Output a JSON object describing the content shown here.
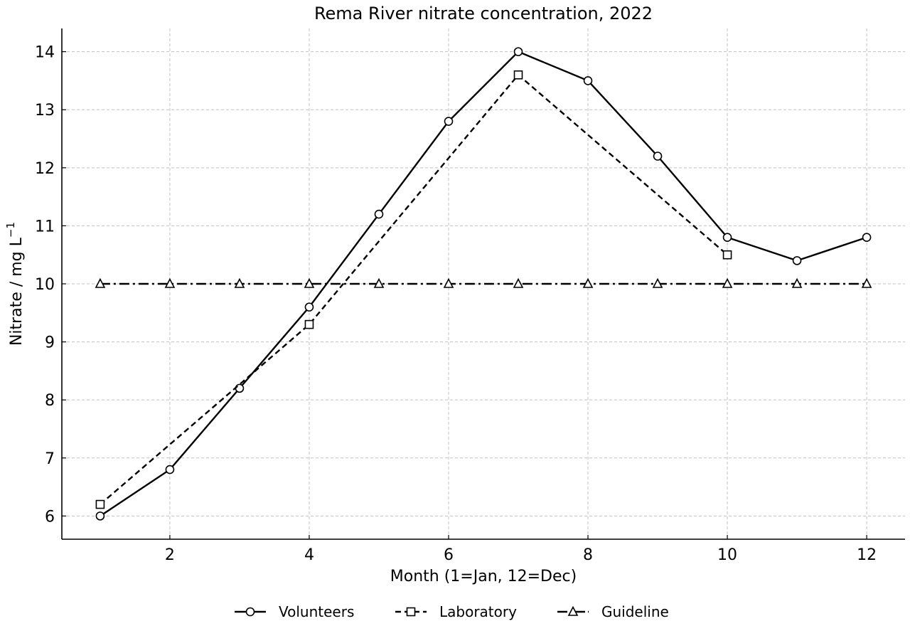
{
  "chart_data": {
    "type": "line",
    "title": "Rema River nitrate concentration, 2022",
    "xlabel": "Month (1=Jan, 12=Dec)",
    "ylabel": "Nitrate / mg L",
    "ylabel_superscript": "−1",
    "xlim": [
      0.45,
      12.55
    ],
    "ylim": [
      5.6,
      14.4
    ],
    "xticks": [
      2,
      4,
      6,
      8,
      10,
      12
    ],
    "yticks": [
      6,
      7,
      8,
      9,
      10,
      11,
      12,
      13,
      14
    ],
    "grid": true,
    "legend_position": "bottom-center",
    "series": [
      {
        "name": "Volunteers",
        "marker": "circle",
        "linestyle": "solid",
        "x": [
          1,
          2,
          3,
          4,
          5,
          6,
          7,
          8,
          9,
          10,
          11,
          12
        ],
        "y": [
          6.0,
          6.8,
          8.2,
          9.6,
          11.2,
          12.8,
          14.0,
          13.5,
          12.2,
          10.8,
          10.4,
          10.8
        ]
      },
      {
        "name": "Laboratory",
        "marker": "square",
        "linestyle": "dashed",
        "x": [
          1,
          4,
          7,
          10
        ],
        "y": [
          6.2,
          9.3,
          13.6,
          10.5
        ]
      },
      {
        "name": "Guideline",
        "marker": "triangle",
        "linestyle": "dashdot",
        "x": [
          1,
          2,
          3,
          4,
          5,
          6,
          7,
          8,
          9,
          10,
          11,
          12
        ],
        "y": [
          10,
          10,
          10,
          10,
          10,
          10,
          10,
          10,
          10,
          10,
          10,
          10
        ]
      }
    ]
  }
}
